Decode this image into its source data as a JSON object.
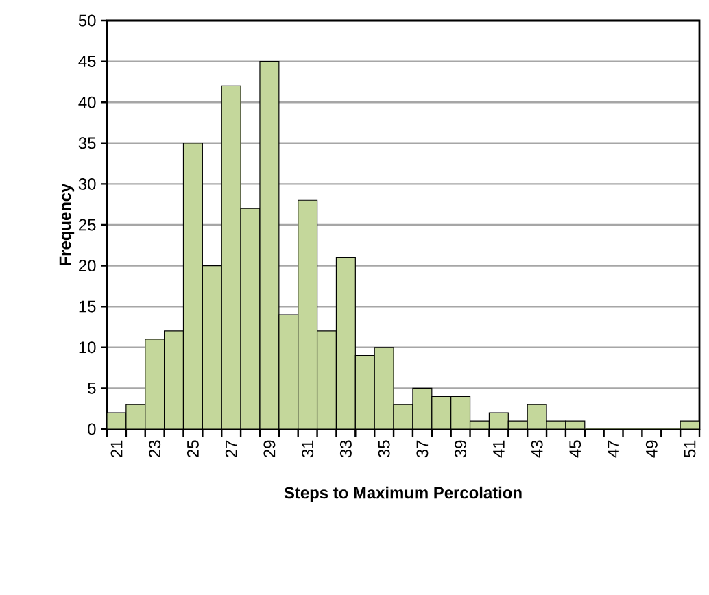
{
  "chart_data": {
    "type": "bar",
    "xlabel": "Steps to Maximum Percolation",
    "ylabel": "Frequency",
    "categories": [
      "21",
      null,
      "23",
      null,
      "25",
      null,
      "27",
      null,
      "29",
      null,
      "31",
      null,
      "33",
      null,
      "35",
      null,
      "37",
      null,
      "39",
      null,
      "41",
      null,
      "43",
      null,
      "45",
      null,
      "47",
      null,
      "49",
      null,
      "51"
    ],
    "values": [
      2,
      3,
      11,
      12,
      35,
      20,
      42,
      27,
      45,
      14,
      28,
      12,
      21,
      9,
      10,
      3,
      5,
      4,
      4,
      1,
      2,
      1,
      3,
      1,
      1,
      0,
      0,
      0,
      0,
      0,
      1
    ],
    "color": "#c4d79b",
    "ylim": [
      0,
      50
    ],
    "yticks": [
      0,
      5,
      10,
      15,
      20,
      25,
      30,
      35,
      40,
      45,
      50
    ],
    "grid": "y"
  }
}
